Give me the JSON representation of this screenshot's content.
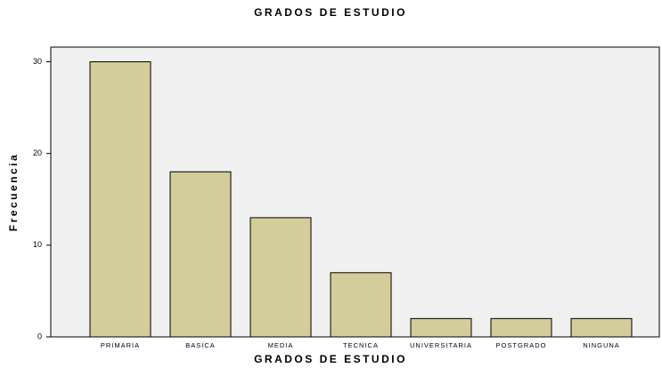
{
  "chart_data": {
    "type": "bar",
    "title": "GRADOS DE ESTUDIO",
    "x_label": "GRADOS DE ESTUDIO",
    "y_label": "Frecuencia",
    "categories": [
      "PRIMARIA",
      "BASICA",
      "MEDIA",
      "TECNICA",
      "UNIVERSITARIA",
      "POSTGRADO",
      "NINGUNA"
    ],
    "values": [
      30,
      18,
      13,
      7,
      2,
      2,
      2
    ],
    "color": "#d3cd99",
    "ylim": [
      0,
      31.6
    ],
    "yticks": [
      0,
      10,
      20,
      30
    ],
    "grid": false
  }
}
